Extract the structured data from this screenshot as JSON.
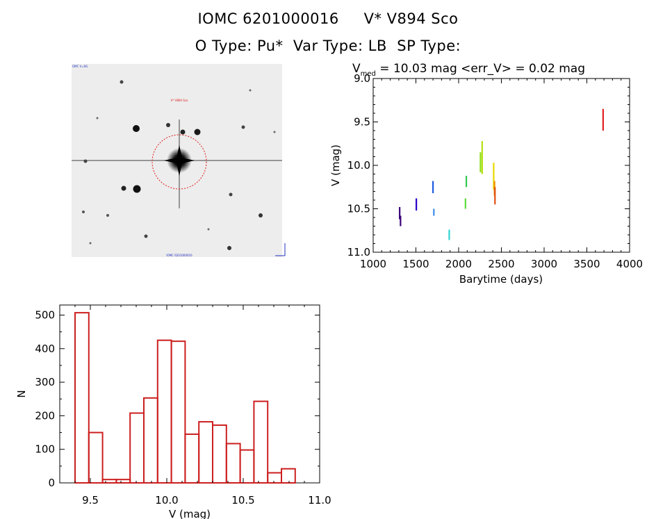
{
  "header": {
    "line1": "IOMC 6201000016     V* V894 Sco",
    "line2": "O Type: Pu*  Var Type: LB  SP Type:"
  },
  "image_panel": {
    "label_top_left": "OMC V=N1",
    "label_target": "V* V894 Sco",
    "label_bottom": "IOMC 6201000016"
  },
  "chart_data": [
    {
      "type": "scatter",
      "title_prefix": "V",
      "title_subscript": "med",
      "title_rest": " = 10.03 mag <err_V> = 0.02 mag",
      "xlabel": "Barytime (days)",
      "ylabel": "V (mag)",
      "xlim": [
        1000,
        4000
      ],
      "ylim": [
        11.0,
        9.0
      ],
      "y_inverted": true,
      "xticks": [
        "1000",
        "1500",
        "2000",
        "2500",
        "3000",
        "3500",
        "4000"
      ],
      "yticks": [
        "9.0",
        "9.5",
        "10.0",
        "10.5",
        "11.0"
      ],
      "series": [
        {
          "name": "s1",
          "color": "#3a0078",
          "x": [
            1310,
            1310,
            1320,
            1320
          ],
          "y": [
            10.48,
            10.62,
            10.58,
            10.7
          ]
        },
        {
          "name": "s2",
          "color": "#2a00c8",
          "x": [
            1505,
            1505
          ],
          "y": [
            10.38,
            10.52
          ]
        },
        {
          "name": "s3",
          "color": "#1f5ce0",
          "x": [
            1700,
            1700
          ],
          "y": [
            10.18,
            10.32
          ]
        },
        {
          "name": "s4",
          "color": "#3c8ce8",
          "x": [
            1710,
            1710
          ],
          "y": [
            10.5,
            10.58
          ]
        },
        {
          "name": "s5",
          "color": "#30d2d2",
          "x": [
            1890,
            1890
          ],
          "y": [
            10.74,
            10.86
          ]
        },
        {
          "name": "s6",
          "color": "#30c850",
          "x": [
            2090,
            2090
          ],
          "y": [
            10.12,
            10.25
          ]
        },
        {
          "name": "s7",
          "color": "#5cdc3c",
          "x": [
            2080,
            2080
          ],
          "y": [
            10.38,
            10.5
          ]
        },
        {
          "name": "s8",
          "color": "#8ee020",
          "x": [
            2255,
            2255
          ],
          "y": [
            9.85,
            10.08
          ]
        },
        {
          "name": "s9",
          "color": "#b4e010",
          "x": [
            2275,
            2275
          ],
          "y": [
            9.72,
            10.1
          ]
        },
        {
          "name": "s10",
          "color": "#e8d800",
          "x": [
            2410,
            2410
          ],
          "y": [
            9.97,
            10.28
          ]
        },
        {
          "name": "s11",
          "color": "#f09000",
          "x": [
            2420,
            2420
          ],
          "y": [
            10.18,
            10.35
          ]
        },
        {
          "name": "s12",
          "color": "#e05010",
          "x": [
            2425,
            2425
          ],
          "y": [
            10.25,
            10.45
          ]
        },
        {
          "name": "s13",
          "color": "#e02020",
          "x": [
            3690,
            3690
          ],
          "y": [
            9.35,
            9.6
          ]
        }
      ]
    },
    {
      "type": "bar",
      "subtype": "histogram",
      "xlabel": "V (mag)",
      "ylabel": "N",
      "xlim": [
        9.3,
        11.0
      ],
      "ylim": [
        0,
        530
      ],
      "xticks": [
        "9.5",
        "10.0",
        "10.5",
        "11.0"
      ],
      "yticks": [
        "0",
        "100",
        "200",
        "300",
        "400",
        "500"
      ],
      "bin_edges": [
        9.4,
        9.49,
        9.58,
        9.67,
        9.76,
        9.85,
        9.94,
        10.03,
        10.12,
        10.21,
        10.3,
        10.39,
        10.48,
        10.57,
        10.66,
        10.75,
        10.84
      ],
      "values": [
        507,
        150,
        10,
        10,
        208,
        253,
        425,
        422,
        145,
        182,
        172,
        117,
        98,
        243,
        30,
        42
      ],
      "color": "#cc1f1f"
    }
  ]
}
